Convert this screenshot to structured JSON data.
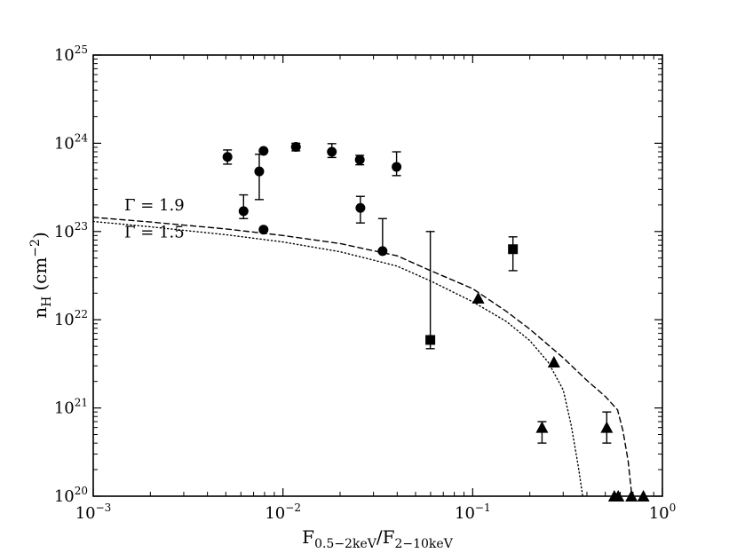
{
  "chart_data": {
    "type": "scatter",
    "xscale": "log",
    "yscale": "log",
    "xlim": [
      0.001,
      1
    ],
    "ylim": [
      1e+20,
      1e+25
    ],
    "xlabel": {
      "main": "F",
      "sub1": "0.5−2keV",
      "slash": "/F",
      "sub2": "2−10keV"
    },
    "ylabel": {
      "main": "n",
      "sub": "H",
      "unit": "(cm",
      "exp": "−2",
      "close": ")"
    },
    "xticks": [
      {
        "value": 0.001,
        "base": "10",
        "exp": "−3"
      },
      {
        "value": 0.01,
        "base": "10",
        "exp": "−2"
      },
      {
        "value": 0.1,
        "base": "10",
        "exp": "−1"
      },
      {
        "value": 1,
        "base": "10",
        "exp": "0"
      }
    ],
    "yticks": [
      {
        "value": 1e+20,
        "base": "10",
        "exp": "20"
      },
      {
        "value": 1e+21,
        "base": "10",
        "exp": "21"
      },
      {
        "value": 1e+22,
        "base": "10",
        "exp": "22"
      },
      {
        "value": 1e+23,
        "base": "10",
        "exp": "23"
      },
      {
        "value": 1e+24,
        "base": "10",
        "exp": "24"
      },
      {
        "value": 1e+25,
        "base": "10",
        "exp": "25"
      }
    ],
    "curves": [
      {
        "label": "Γ = 1.9",
        "style": "dashed",
        "points": [
          [
            0.001,
            1.45e+23
          ],
          [
            0.002,
            1.28e+23
          ],
          [
            0.005,
            1.07e+23
          ],
          [
            0.01,
            9e+22
          ],
          [
            0.02,
            7.3e+22
          ],
          [
            0.04,
            5.3e+22
          ],
          [
            0.06,
            3.6e+22
          ],
          [
            0.1,
            2.25e+22
          ],
          [
            0.15,
            1.25e+22
          ],
          [
            0.2,
            7.8e+21
          ],
          [
            0.3,
            3.7e+21
          ],
          [
            0.4,
            2.05e+21
          ],
          [
            0.5,
            1.35e+21
          ],
          [
            0.58,
            9.5e+20
          ],
          [
            0.62,
            5.5e+20
          ],
          [
            0.66,
            2.5e+20
          ],
          [
            0.69,
            1e+20
          ]
        ]
      },
      {
        "label": "Γ = 1.5",
        "style": "dotted",
        "points": [
          [
            0.001,
            1.3e+23
          ],
          [
            0.002,
            1.13e+23
          ],
          [
            0.005,
            9.2e+22
          ],
          [
            0.01,
            7.6e+22
          ],
          [
            0.02,
            5.9e+22
          ],
          [
            0.04,
            4.05e+22
          ],
          [
            0.06,
            2.75e+22
          ],
          [
            0.1,
            1.6e+22
          ],
          [
            0.15,
            9.6e+21
          ],
          [
            0.2,
            5.8e+21
          ],
          [
            0.25,
            3.3e+21
          ],
          [
            0.3,
            1.6e+21
          ],
          [
            0.33,
            6.5e+20
          ],
          [
            0.36,
            2.2e+20
          ],
          [
            0.38,
            1e+20
          ]
        ]
      }
    ],
    "series": [
      {
        "marker": "circle",
        "points": [
          {
            "x": 0.0051,
            "y": 7e+23,
            "ylo": 5.8e+23,
            "yhi": 8.4e+23
          },
          {
            "x": 0.0062,
            "y": 1.7e+23,
            "ylo": 1.4e+23,
            "yhi": 2.6e+23
          },
          {
            "x": 0.0075,
            "y": 4.8e+23,
            "ylo": 2.3e+23,
            "yhi": 7.5e+23
          },
          {
            "x": 0.0079,
            "y": 8.2e+23
          },
          {
            "x": 0.0079,
            "y": 1.05e+23
          },
          {
            "x": 0.0117,
            "y": 9.1e+23,
            "ylo": 8.2e+23,
            "yhi": 1e+24
          },
          {
            "x": 0.0181,
            "y": 8e+23,
            "ylo": 6.9e+23,
            "yhi": 9.9e+23
          },
          {
            "x": 0.0254,
            "y": 6.5e+23,
            "ylo": 5.7e+23,
            "yhi": 7.3e+23
          },
          {
            "x": 0.0256,
            "y": 1.85e+23,
            "ylo": 1.25e+23,
            "yhi": 2.5e+23
          },
          {
            "x": 0.0335,
            "y": 6e+22,
            "yhi": 1.4e+23
          },
          {
            "x": 0.0397,
            "y": 5.4e+23,
            "ylo": 4.3e+23,
            "yhi": 8e+23
          }
        ]
      },
      {
        "marker": "square",
        "points": [
          {
            "x": 0.0598,
            "y": 5.9e+21,
            "ylo": 4.7e+21,
            "yhi": 1e+23
          },
          {
            "x": 0.163,
            "y": 6.3e+22,
            "ylo": 3.6e+22,
            "yhi": 8.7e+22
          }
        ]
      },
      {
        "marker": "triangle",
        "points": [
          {
            "x": 0.107,
            "y": 1.75e+22
          },
          {
            "x": 0.232,
            "y": 6e+20,
            "ylo": 4e+20,
            "yhi": 7e+20
          },
          {
            "x": 0.268,
            "y": 3.3e+21
          },
          {
            "x": 0.509,
            "y": 6e+20,
            "ylo": 4e+20,
            "yhi": 9e+20
          },
          {
            "x": 0.558,
            "y": 1e+20
          },
          {
            "x": 0.585,
            "y": 1e+20
          },
          {
            "x": 0.687,
            "y": 1e+20
          },
          {
            "x": 0.794,
            "y": 1e+20
          }
        ]
      }
    ],
    "legend_placement": "upper-left, labels beside curves",
    "grid": false
  }
}
